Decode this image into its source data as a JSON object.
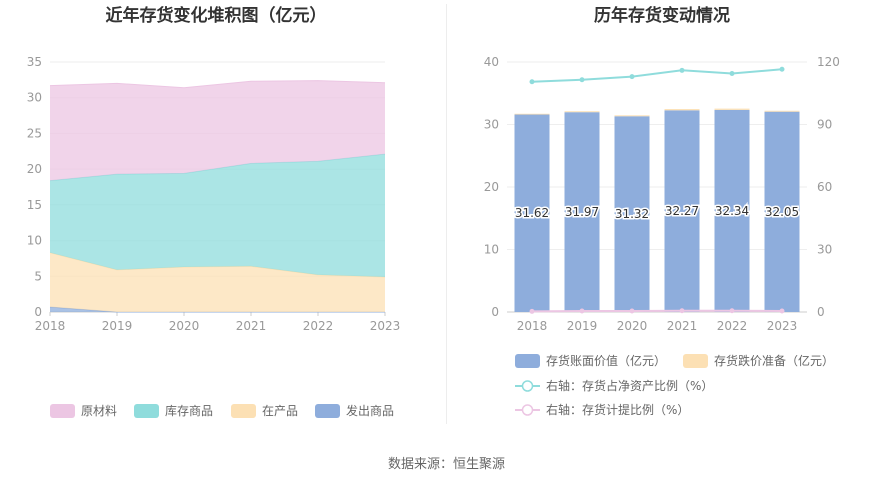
{
  "source_text": "数据来源：恒生聚源",
  "chart_data": [
    {
      "type": "area",
      "title": "近年存货变化堆积图（亿元）",
      "x": [
        "2018",
        "2019",
        "2020",
        "2021",
        "2022",
        "2023"
      ],
      "ylim": [
        0,
        35
      ],
      "yticks": [
        "0",
        "5",
        "10",
        "15",
        "20",
        "25",
        "30",
        "35"
      ],
      "stacked": true,
      "series": [
        {
          "name": "发出商品",
          "color": "#8eaddc",
          "values": [
            0.7,
            0.0,
            0.0,
            0.0,
            0.0,
            0.0
          ]
        },
        {
          "name": "在产品",
          "color": "#fce0b4",
          "values": [
            7.6,
            5.9,
            6.3,
            6.4,
            5.2,
            4.9
          ]
        },
        {
          "name": "库存商品",
          "color": "#8fdcdc",
          "values": [
            10.1,
            13.4,
            13.1,
            14.4,
            15.9,
            17.2
          ]
        },
        {
          "name": "原材料",
          "color": "#ecc6e3",
          "values": [
            13.3,
            12.7,
            12.0,
            11.5,
            11.3,
            10.0
          ]
        }
      ],
      "legend_position": "bottom",
      "grid": true
    },
    {
      "type": "bar",
      "title": "历年存货变动情况",
      "x": [
        "2018",
        "2019",
        "2020",
        "2021",
        "2022",
        "2023"
      ],
      "ylim_left": [
        0,
        40
      ],
      "yticks_left": [
        "0",
        "10",
        "20",
        "30",
        "40"
      ],
      "ylim_right": [
        0,
        120
      ],
      "yticks_right": [
        "0",
        "30",
        "60",
        "90",
        "120"
      ],
      "stacked": true,
      "series": [
        {
          "name": "存货账面价值（亿元）",
          "kind": "bar",
          "axis": "left",
          "color": "#8eaddc",
          "values": [
            31.62,
            31.97,
            31.32,
            32.27,
            32.34,
            32.05
          ],
          "labels": [
            "31.62",
            "31.97",
            "31.32",
            "32.27",
            "32.34",
            "32.05"
          ]
        },
        {
          "name": "存货跌价准备（亿元）",
          "kind": "bar",
          "axis": "left",
          "color": "#fce0b4",
          "values": [
            0.1,
            0.15,
            0.15,
            0.2,
            0.2,
            0.15
          ]
        },
        {
          "name": "右轴：存货占净资产比例（%）",
          "kind": "line",
          "axis": "right",
          "color": "#8fdcdc",
          "values": [
            110.5,
            111.5,
            113.0,
            116.0,
            114.5,
            116.5
          ]
        },
        {
          "name": "右轴：存货计提比例（%）",
          "kind": "line",
          "axis": "right",
          "color": "#ecc6e3",
          "values": [
            0.3,
            0.5,
            0.5,
            0.6,
            0.6,
            0.5
          ]
        }
      ],
      "legend_position": "bottom",
      "grid": true
    }
  ]
}
